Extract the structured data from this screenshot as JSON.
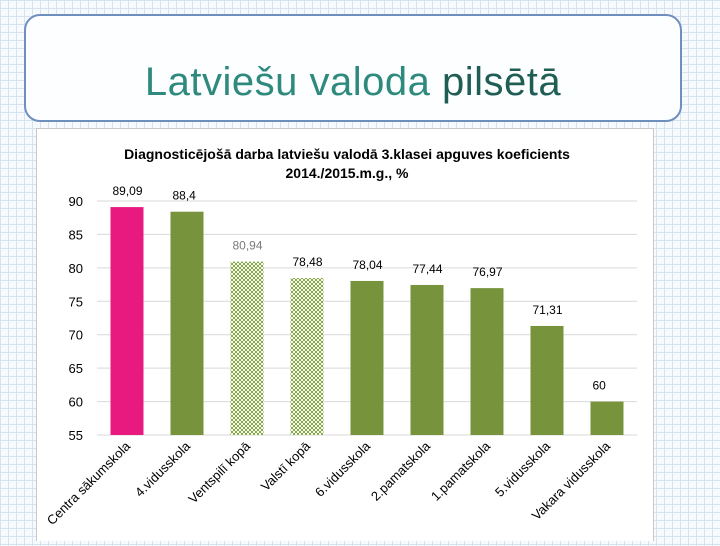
{
  "slide": {
    "title_main": "Latviešu valoda",
    "title_accent": "pilsētā"
  },
  "colors": {
    "title": "#2f8a7e",
    "title_accent": "#1f5e55",
    "bar_pink": "#e8197f",
    "bar_green": "#77933c",
    "bar_pattern": "#9bbb59",
    "grid": "#d9d9d9"
  },
  "chart_data": {
    "type": "bar",
    "title": "Diagnosticējošā darba latviešu valodā 3.klasei apguves koeficients",
    "subtitle": "2014./2015.m.g., %",
    "xlabel": "",
    "ylabel": "",
    "ylim": [
      55,
      90
    ],
    "yticks": [
      55,
      60,
      65,
      70,
      75,
      80,
      85,
      90
    ],
    "grid": true,
    "categories": [
      "Centra sākumskola",
      "4.vidusskola",
      "Ventspilī kopā",
      "Valstī kopā",
      "6.vidusskola",
      "2.pamatskola",
      "1.pamatskola",
      "5.vidusskola",
      "Vakara vidusskola"
    ],
    "values": [
      89.09,
      88.4,
      80.94,
      78.48,
      78.04,
      77.44,
      76.97,
      71.31,
      60
    ],
    "value_labels": [
      "89,09",
      "88,4",
      "80,94",
      "78,48",
      "78,04",
      "77,44",
      "76,97",
      "71,31",
      "60"
    ],
    "bar_styles": [
      "pink",
      "green",
      "pattern",
      "pattern",
      "green",
      "green",
      "green",
      "green",
      "green"
    ]
  }
}
